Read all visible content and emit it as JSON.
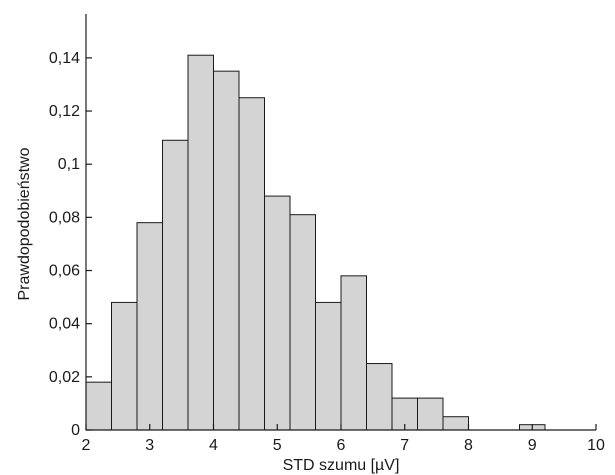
{
  "chart_data": {
    "type": "bar",
    "xlabel": "STD szumu [µV]",
    "ylabel": "Prawdopodobieństwo",
    "xlim": [
      2,
      10
    ],
    "ylim": [
      0,
      0.155
    ],
    "grid": false,
    "bin_width": 0.4,
    "bin_centers": [
      2.2,
      2.6,
      3.0,
      3.4,
      3.8,
      4.2,
      4.6,
      5.0,
      5.4,
      5.8,
      6.2,
      6.6,
      7.0,
      7.4,
      7.8,
      8.2,
      8.6,
      9.0,
      9.4
    ],
    "values": [
      0.018,
      0.048,
      0.078,
      0.109,
      0.141,
      0.135,
      0.125,
      0.088,
      0.081,
      0.048,
      0.058,
      0.025,
      0.012,
      0.012,
      0.005,
      0.0,
      0.0,
      0.002,
      0.0
    ],
    "x_ticks": [
      {
        "value": 2,
        "label": "2"
      },
      {
        "value": 3,
        "label": "3"
      },
      {
        "value": 4,
        "label": "4"
      },
      {
        "value": 5,
        "label": "5"
      },
      {
        "value": 6,
        "label": "6"
      },
      {
        "value": 7,
        "label": "7"
      },
      {
        "value": 8,
        "label": "8"
      },
      {
        "value": 9,
        "label": "9"
      },
      {
        "value": 10,
        "label": "10"
      }
    ],
    "y_ticks": [
      {
        "value": 0,
        "label": "0"
      },
      {
        "value": 0.02,
        "label": "0,02"
      },
      {
        "value": 0.04,
        "label": "0,04"
      },
      {
        "value": 0.06,
        "label": "0,06"
      },
      {
        "value": 0.08,
        "label": "0,08"
      },
      {
        "value": 0.1,
        "label": "0,1"
      },
      {
        "value": 0.12,
        "label": "0,12"
      },
      {
        "value": 0.14,
        "label": "0,14"
      }
    ],
    "colors": {
      "bar_fill": "#d4d4d4",
      "bar_stroke": "#1a1a1a",
      "axis": "#1a1a1a"
    }
  }
}
